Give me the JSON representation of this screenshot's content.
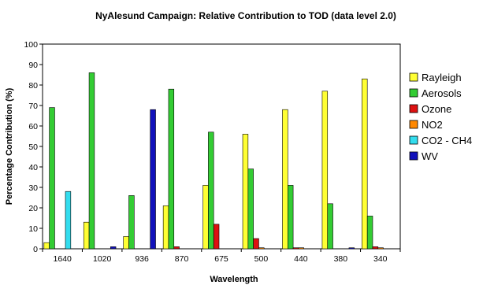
{
  "chart_data": {
    "type": "bar",
    "title": "NyAlesund Campaign: Relative Contribution to TOD (data level 2.0)",
    "xlabel": "Wavelength",
    "ylabel": "Percentage Contribution (%)",
    "ylim": [
      0,
      100
    ],
    "yticks": [
      0,
      10,
      20,
      30,
      40,
      50,
      60,
      70,
      80,
      90,
      100
    ],
    "grid": false,
    "legend": "right",
    "categories": [
      "1640",
      "1020",
      "936",
      "870",
      "675",
      "500",
      "440",
      "380",
      "340"
    ],
    "series": [
      {
        "name": "Rayleigh",
        "color": "#ffff33",
        "values": [
          3,
          13,
          6,
          21,
          31,
          56,
          68,
          77,
          83
        ]
      },
      {
        "name": "Aerosols",
        "color": "#33cc33",
        "values": [
          69,
          86,
          26,
          78,
          57,
          39,
          31,
          22,
          16
        ]
      },
      {
        "name": "Ozone",
        "color": "#dd1111",
        "values": [
          0,
          0,
          0,
          1,
          12,
          5,
          0.5,
          0,
          1
        ]
      },
      {
        "name": "NO2",
        "color": "#ff8800",
        "values": [
          0,
          0,
          0,
          0,
          0,
          0.5,
          0.5,
          0,
          0.5
        ]
      },
      {
        "name": "CO2 - CH4",
        "color": "#33ddee",
        "values": [
          28,
          0,
          0,
          0,
          0,
          0,
          0,
          0,
          0
        ]
      },
      {
        "name": "WV",
        "color": "#1111bb",
        "values": [
          0,
          1,
          68,
          0,
          0,
          0,
          0,
          0.5,
          0
        ]
      }
    ]
  }
}
